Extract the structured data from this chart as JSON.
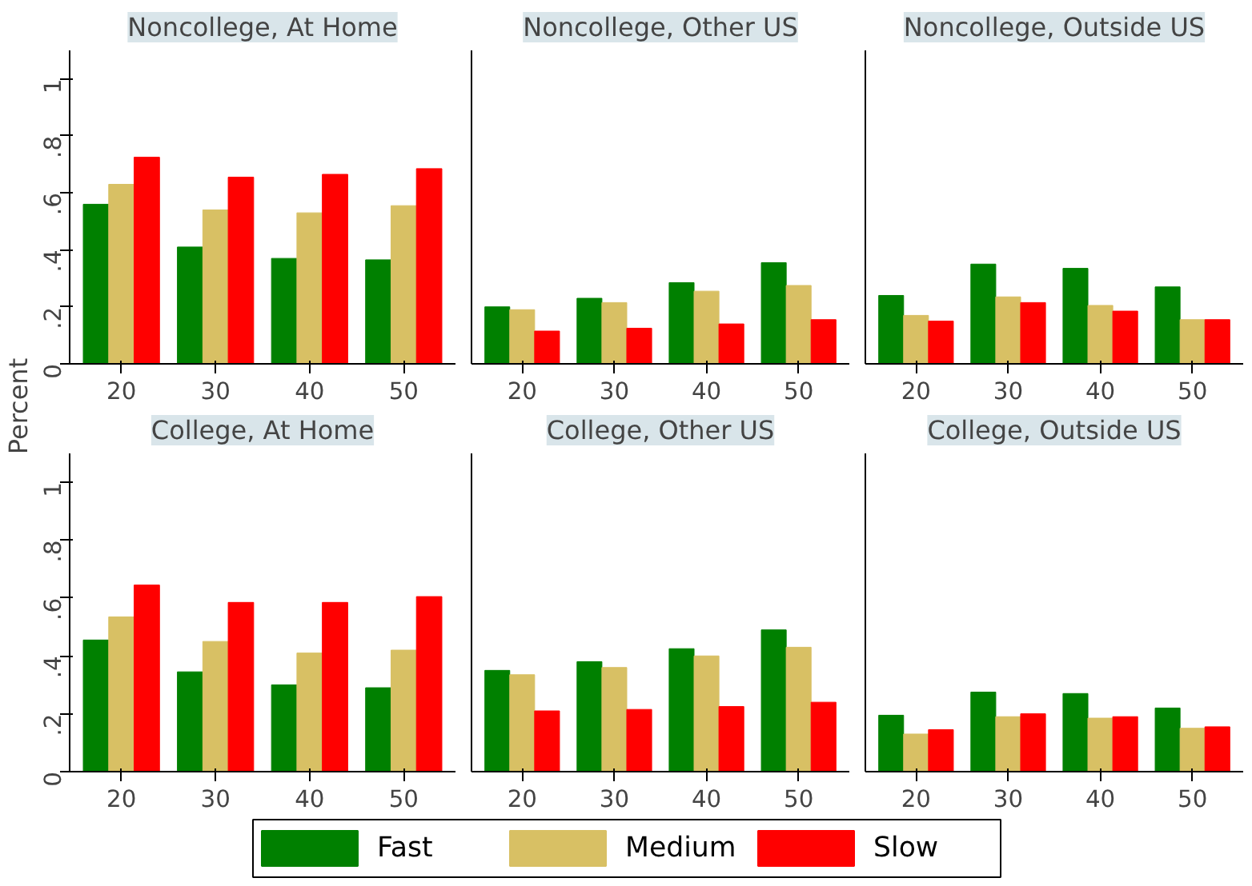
{
  "chart_data": [
    {
      "type": "bar",
      "title": "Noncollege, At Home",
      "ylabel": "Percent",
      "categories": [
        "20",
        "30",
        "40",
        "50"
      ],
      "ylim": [
        0,
        1.1
      ],
      "yticks": [
        {
          "value": 0,
          "label": "0"
        },
        {
          "value": 0.2,
          "label": ".2"
        },
        {
          "value": 0.4,
          "label": ".4"
        },
        {
          "value": 0.6,
          "label": ".6"
        },
        {
          "value": 0.8,
          "label": ".8"
        },
        {
          "value": 1,
          "label": "1"
        }
      ],
      "grid": false,
      "legend": "bottom",
      "series": [
        {
          "name": "Fast",
          "color": "#008000",
          "values": [
            0.56,
            0.41,
            0.37,
            0.365
          ]
        },
        {
          "name": "Medium",
          "color": "#d8c064",
          "values": [
            0.63,
            0.54,
            0.53,
            0.555
          ]
        },
        {
          "name": "Slow",
          "color": "#ff0000",
          "values": [
            0.725,
            0.655,
            0.665,
            0.685
          ]
        }
      ]
    },
    {
      "type": "bar",
      "title": "Noncollege, Other US",
      "categories": [
        "20",
        "30",
        "40",
        "50"
      ],
      "ylim": [
        0,
        1.1
      ],
      "tick_labels": "x",
      "grid": false,
      "series": [
        {
          "color": "#008000",
          "values": [
            0.2,
            0.23,
            0.285,
            0.355
          ]
        },
        {
          "color": "#d8c064",
          "values": [
            0.19,
            0.215,
            0.255,
            0.275
          ]
        },
        {
          "color": "#ff0000",
          "values": [
            0.115,
            0.125,
            0.14,
            0.155
          ]
        }
      ]
    },
    {
      "type": "bar",
      "title": "Noncollege, Outside US",
      "categories": [
        "20",
        "30",
        "40",
        "50"
      ],
      "ylim": [
        0,
        1.1
      ],
      "tick_labels": "x",
      "grid": false,
      "series": [
        {
          "color": "#008000",
          "values": [
            0.24,
            0.35,
            0.335,
            0.27
          ]
        },
        {
          "color": "#d8c064",
          "values": [
            0.17,
            0.235,
            0.205,
            0.155
          ]
        },
        {
          "color": "#ff0000",
          "values": [
            0.15,
            0.215,
            0.185,
            0.155
          ]
        }
      ]
    },
    {
      "type": "bar",
      "title": "College, At Home",
      "categories": [
        "20",
        "30",
        "40",
        "50"
      ],
      "ylim": [
        0,
        1.1
      ],
      "yticks": [
        {
          "value": 0,
          "label": "0"
        },
        {
          "value": 0.2,
          "label": ".2"
        },
        {
          "value": 0.4,
          "label": ".4"
        },
        {
          "value": 0.6,
          "label": ".6"
        },
        {
          "value": 0.8,
          "label": ".8"
        },
        {
          "value": 1,
          "label": "1"
        }
      ],
      "grid": false,
      "series": [
        {
          "color": "#008000",
          "values": [
            0.455,
            0.345,
            0.3,
            0.29
          ]
        },
        {
          "color": "#d8c064",
          "values": [
            0.535,
            0.45,
            0.41,
            0.42
          ]
        },
        {
          "color": "#ff0000",
          "values": [
            0.645,
            0.585,
            0.585,
            0.605
          ]
        }
      ]
    },
    {
      "type": "bar",
      "title": "College, Other US",
      "categories": [
        "20",
        "30",
        "40",
        "50"
      ],
      "ylim": [
        0,
        1.1
      ],
      "tick_labels": "x",
      "grid": false,
      "series": [
        {
          "color": "#008000",
          "values": [
            0.35,
            0.38,
            0.425,
            0.49
          ]
        },
        {
          "color": "#d8c064",
          "values": [
            0.335,
            0.36,
            0.4,
            0.43
          ]
        },
        {
          "color": "#ff0000",
          "values": [
            0.21,
            0.215,
            0.225,
            0.24
          ]
        }
      ]
    },
    {
      "type": "bar",
      "title": "College, Outside US",
      "categories": [
        "20",
        "30",
        "40",
        "50"
      ],
      "ylim": [
        0,
        1.1
      ],
      "tick_labels": "x",
      "grid": false,
      "series": [
        {
          "color": "#008000",
          "values": [
            0.195,
            0.275,
            0.27,
            0.22
          ]
        },
        {
          "color": "#d8c064",
          "values": [
            0.13,
            0.19,
            0.185,
            0.15
          ]
        },
        {
          "color": "#ff0000",
          "values": [
            0.145,
            0.2,
            0.19,
            0.155
          ]
        }
      ]
    }
  ]
}
